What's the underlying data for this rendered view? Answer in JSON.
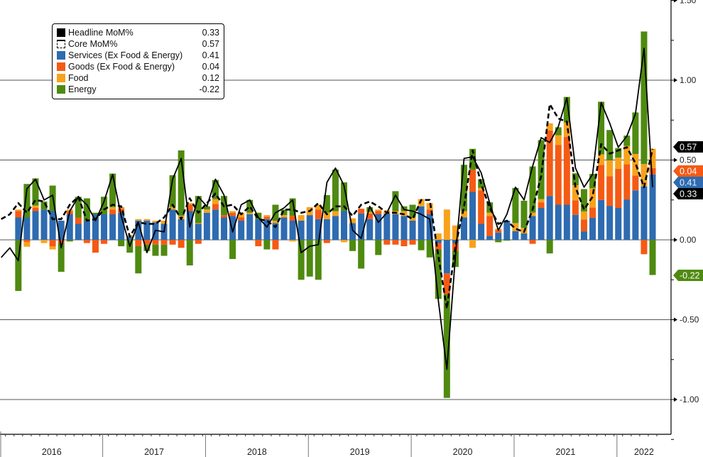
{
  "chart_data": {
    "type": "bar",
    "stacked": true,
    "title": "",
    "xlabel": "",
    "ylabel": "",
    "ylim": [
      -1.25,
      1.5
    ],
    "y_ticks": [
      1.5,
      1.0,
      0.5,
      0.0,
      -0.5,
      -1.0
    ],
    "y_tick_labels": [
      "1.50",
      "1.00",
      "0.50",
      "0.00",
      "-0.50",
      "-1.00"
    ],
    "grid": true,
    "legend_position": "top-left",
    "x_start": "Dec 2015",
    "x_end": "Apr 2022",
    "x_frequency": "monthly",
    "year_labels": [
      "2016",
      "2017",
      "2018",
      "2019",
      "2020",
      "2021",
      "2022"
    ],
    "colors": {
      "headline": "#000000",
      "core": "#000000",
      "services": "#2e6bb0",
      "goods": "#f55a14",
      "food": "#f8a21c",
      "energy": "#4f8a10"
    },
    "legend": [
      {
        "key": "headline",
        "label": "Headline MoM%",
        "value": "0.33"
      },
      {
        "key": "core",
        "label": "Core MoM%",
        "value": "0.57"
      },
      {
        "key": "services",
        "label": "Services (Ex Food & Energy)",
        "value": "0.41"
      },
      {
        "key": "goods",
        "label": "Goods (Ex Food & Energy)",
        "value": "0.04"
      },
      {
        "key": "food",
        "label": "Food",
        "value": "0.12"
      },
      {
        "key": "energy",
        "label": "Energy",
        "value": "-0.22"
      }
    ],
    "last_value_tags": [
      {
        "key": "core",
        "text": "0.57"
      },
      {
        "key": "goods",
        "text": "0.04"
      },
      {
        "key": "services",
        "text": "0.41"
      },
      {
        "key": "headline",
        "text": "0.33"
      },
      {
        "key": "energy",
        "text": "-0.22"
      }
    ],
    "series": [
      {
        "name": "Services (Ex Food & Energy)",
        "key": "services",
        "kind": "bar",
        "values": [
          null,
          null,
          0.14,
          0.14,
          0.18,
          0.19,
          0.18,
          0.12,
          0.16,
          0.1,
          0.12,
          0.16,
          0.16,
          0.16,
          0.17,
          0.02,
          0.12,
          0.12,
          0.11,
          0.1,
          0.19,
          0.13,
          0.18,
          0.1,
          0.17,
          0.19,
          0.14,
          0.15,
          0.12,
          0.16,
          0.13,
          0.13,
          0.105,
          0.14,
          0.12,
          0.12,
          0.155,
          0.13,
          0.13,
          0.15,
          0.18,
          0.105,
          0.165,
          0.13,
          0.16,
          0.165,
          0.16,
          0.15,
          0.12,
          0.21,
          0.16,
          -0.02,
          -0.21,
          -0.02,
          0.14,
          0.3,
          0.1,
          0.025,
          0.045,
          0.12,
          0.055,
          0.04,
          0.15,
          0.2,
          0.275,
          0.22,
          0.22,
          0.157,
          0.053,
          0.138,
          0.25,
          0.213,
          0.2,
          0.253,
          0.31,
          0.335,
          0.41
        ]
      },
      {
        "name": "Goods (Ex Food & Energy)",
        "key": "goods",
        "kind": "bar",
        "values": [
          null,
          null,
          0.04,
          -0.013,
          0.02,
          0,
          -0.04,
          -0.02,
          0.02,
          0.04,
          -0.02,
          -0.08,
          -0.025,
          0.03,
          0.025,
          0,
          -0.04,
          -0.03,
          -0.03,
          -0.03,
          -0.03,
          -0.05,
          0.04,
          -0.025,
          0,
          0.035,
          0.015,
          0.02,
          0.02,
          0,
          -0.04,
          0.015,
          -0.06,
          0,
          0.03,
          0,
          0,
          0.06,
          -0.02,
          0,
          0,
          0,
          0.03,
          0.035,
          0.02,
          -0.03,
          -0.03,
          -0.04,
          -0.03,
          0,
          0.03,
          -0.04,
          -0.13,
          -0.05,
          0,
          0.14,
          0.21,
          0.125,
          0.015,
          0,
          0,
          0,
          -0.025,
          0.035,
          0.41,
          0.375,
          0.425,
          0.09,
          0.075,
          0.065,
          0.22,
          0.185,
          0.245,
          0.22,
          0.093,
          -0.09,
          0.04
        ]
      },
      {
        "name": "Food",
        "key": "food",
        "kind": "bar",
        "values": [
          null,
          null,
          0.01,
          -0.03,
          0.015,
          -0.02,
          -0.02,
          0,
          0.01,
          0,
          0,
          0,
          0,
          0.015,
          0.01,
          0.01,
          0.01,
          0.01,
          0.01,
          0.02,
          0.015,
          0.02,
          0.01,
          0.005,
          0.02,
          0.03,
          0,
          0.01,
          0.03,
          0.01,
          0,
          0.01,
          0.015,
          0.015,
          -0.01,
          0.035,
          0.05,
          0.03,
          0.04,
          0.03,
          -0.015,
          0.03,
          0,
          0.01,
          0.01,
          0.02,
          0.02,
          0.03,
          0.02,
          0.045,
          0.04,
          0.04,
          0.19,
          0.09,
          0.04,
          -0.05,
          0.015,
          0.02,
          0.01,
          0,
          0.05,
          0.035,
          0.02,
          0.02,
          0.045,
          0.06,
          0.09,
          0.095,
          0.05,
          0.12,
          0.065,
          0.1,
          0.07,
          0.115,
          0.135,
          0.14,
          0.12
        ]
      },
      {
        "name": "Energy",
        "key": "energy",
        "kind": "bar",
        "values": [
          null,
          null,
          -0.32,
          0.21,
          0.17,
          0.05,
          0.16,
          -0.18,
          -0.01,
          0.13,
          0.14,
          0.01,
          0.11,
          0.21,
          -0.04,
          -0.08,
          -0.17,
          -0.04,
          -0.07,
          -0.07,
          0.2,
          0.41,
          -0.16,
          0.17,
          0.02,
          0.12,
          0.12,
          -0.12,
          0,
          0.08,
          0.04,
          -0.06,
          0.1,
          0.035,
          0.11,
          -0.25,
          -0.23,
          -0.25,
          0.11,
          0.26,
          0.18,
          -0.07,
          -0.18,
          0.03,
          -0.095,
          0,
          0.125,
          0.03,
          0.08,
          -0.065,
          -0.11,
          -0.31,
          -0.65,
          -0.1,
          0.29,
          0.13,
          0.055,
          0.065,
          -0.015,
          -0.005,
          0.22,
          0.17,
          0.29,
          0.37,
          -0.085,
          0.05,
          0.16,
          0.075,
          0.14,
          0.09,
          0.33,
          0.19,
          0.06,
          0.065,
          0.26,
          0.83,
          -0.22
        ]
      },
      {
        "name": "Headline MoM%",
        "key": "headline",
        "kind": "line",
        "values": [
          -0.11,
          -0.05,
          -0.13,
          0.32,
          0.38,
          0.25,
          0.28,
          -0.05,
          0.18,
          0.27,
          0.22,
          0.12,
          0.24,
          0.41,
          0.15,
          -0.04,
          0.11,
          -0.08,
          0.06,
          0.05,
          0.38,
          0.51,
          0.08,
          0.27,
          0.21,
          0.38,
          0.28,
          0.05,
          0.22,
          0.25,
          0.14,
          0.08,
          0.17,
          0.2,
          0.25,
          -0.08,
          -0.04,
          -0.03,
          0.36,
          0.45,
          0.34,
          0.06,
          0.01,
          0.21,
          0.11,
          0.17,
          0.28,
          0.19,
          0.18,
          0.16,
          0.13,
          -0.38,
          -0.81,
          -0.1,
          0.51,
          0.52,
          0.42,
          0.23,
          0.06,
          0.16,
          0.33,
          0.25,
          0.46,
          0.64,
          0.61,
          0.71,
          0.89,
          0.45,
          0.33,
          0.41,
          0.86,
          0.73,
          0.58,
          0.65,
          0.79,
          1.2,
          0.33
        ]
      },
      {
        "name": "Core MoM%",
        "key": "core",
        "kind": "line",
        "dashed": true,
        "values": [
          0.13,
          0.16,
          0.23,
          0.17,
          0.25,
          0.24,
          0.13,
          0.13,
          0.22,
          0.27,
          0.12,
          0.13,
          0.19,
          0.22,
          0.21,
          0.02,
          0.11,
          0.1,
          0.1,
          0.14,
          0.22,
          0.13,
          0.26,
          0.17,
          0.23,
          0.29,
          0.21,
          0.22,
          0.16,
          0.21,
          0.13,
          0.12,
          0.08,
          0.19,
          0.19,
          0.17,
          0.18,
          0.23,
          0.16,
          0.21,
          0.21,
          0.15,
          0.22,
          0.24,
          0.21,
          0.17,
          0.17,
          0.16,
          0.13,
          0.25,
          0.25,
          -0.1,
          -0.43,
          -0.04,
          0.21,
          0.56,
          0.35,
          0.2,
          0.1,
          0.12,
          0.07,
          0.05,
          0.19,
          0.4,
          0.85,
          0.76,
          0.74,
          0.33,
          0.19,
          0.27,
          0.6,
          0.54,
          0.56,
          0.58,
          0.48,
          0.33,
          0.57
        ]
      }
    ]
  }
}
